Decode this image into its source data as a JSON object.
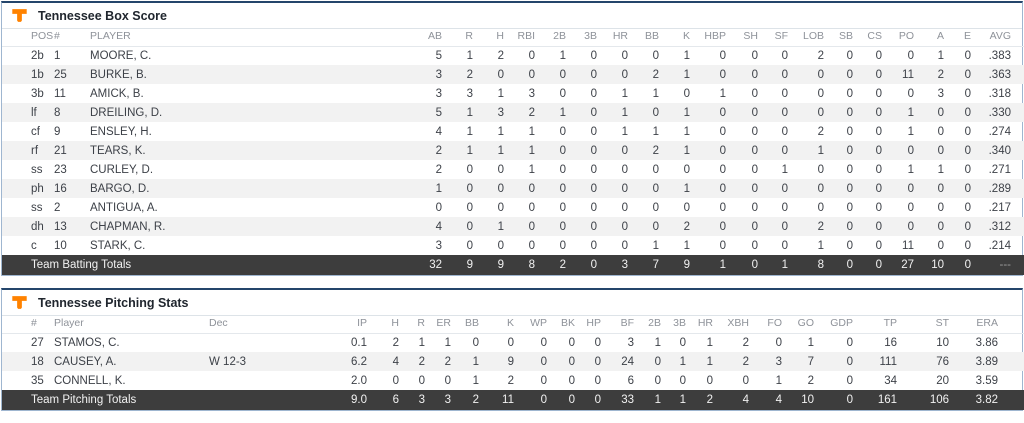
{
  "theme": {
    "accent_orange": "#FF8200",
    "border_blue": "#9fb6d0",
    "border_top_navy": "#24456b",
    "totals_row_bg": "#3d3d3d",
    "alt_row_bg": "#f2f2f2"
  },
  "batting": {
    "title": "Tennessee Box Score",
    "logo": "tennessee-power-t",
    "columns": [
      "POS",
      "#",
      "PLAYER",
      "AB",
      "R",
      "H",
      "RBI",
      "2B",
      "3B",
      "HR",
      "BB",
      "K",
      "HBP",
      "SH",
      "SF",
      "LOB",
      "SB",
      "CS",
      "PO",
      "A",
      "E",
      "AVG"
    ],
    "text_col_count": 3,
    "rows": [
      [
        "2b",
        "1",
        "MOORE, C.",
        "5",
        "1",
        "2",
        "0",
        "1",
        "0",
        "0",
        "0",
        "1",
        "0",
        "0",
        "0",
        "2",
        "0",
        "0",
        "0",
        "1",
        "0",
        ".383"
      ],
      [
        "1b",
        "25",
        "BURKE, B.",
        "3",
        "2",
        "0",
        "0",
        "0",
        "0",
        "0",
        "2",
        "1",
        "0",
        "0",
        "0",
        "0",
        "0",
        "0",
        "11",
        "2",
        "0",
        ".363"
      ],
      [
        "3b",
        "11",
        "AMICK, B.",
        "3",
        "3",
        "1",
        "3",
        "0",
        "0",
        "1",
        "1",
        "0",
        "1",
        "0",
        "0",
        "0",
        "0",
        "0",
        "0",
        "3",
        "0",
        ".318"
      ],
      [
        "lf",
        "8",
        "DREILING, D.",
        "5",
        "1",
        "3",
        "2",
        "1",
        "0",
        "1",
        "0",
        "1",
        "0",
        "0",
        "0",
        "0",
        "0",
        "0",
        "1",
        "0",
        "0",
        ".330"
      ],
      [
        "cf",
        "9",
        "ENSLEY, H.",
        "4",
        "1",
        "1",
        "1",
        "0",
        "0",
        "1",
        "1",
        "1",
        "0",
        "0",
        "0",
        "2",
        "0",
        "0",
        "1",
        "0",
        "0",
        ".274"
      ],
      [
        "rf",
        "21",
        "TEARS, K.",
        "2",
        "1",
        "1",
        "1",
        "0",
        "0",
        "0",
        "2",
        "1",
        "0",
        "0",
        "0",
        "1",
        "0",
        "0",
        "0",
        "0",
        "0",
        ".340"
      ],
      [
        "ss",
        "23",
        "CURLEY, D.",
        "2",
        "0",
        "0",
        "1",
        "0",
        "0",
        "0",
        "0",
        "0",
        "0",
        "0",
        "1",
        "0",
        "0",
        "0",
        "1",
        "1",
        "0",
        ".271"
      ],
      [
        "ph",
        "16",
        "BARGO, D.",
        "1",
        "0",
        "0",
        "0",
        "0",
        "0",
        "0",
        "0",
        "1",
        "0",
        "0",
        "0",
        "0",
        "0",
        "0",
        "0",
        "0",
        "0",
        ".289"
      ],
      [
        "ss",
        "2",
        "ANTIGUA, A.",
        "0",
        "0",
        "0",
        "0",
        "0",
        "0",
        "0",
        "0",
        "0",
        "0",
        "0",
        "0",
        "0",
        "0",
        "0",
        "0",
        "0",
        "0",
        ".217"
      ],
      [
        "dh",
        "13",
        "CHAPMAN, R.",
        "4",
        "0",
        "1",
        "0",
        "0",
        "0",
        "0",
        "0",
        "2",
        "0",
        "0",
        "0",
        "2",
        "0",
        "0",
        "0",
        "0",
        "0",
        ".312"
      ],
      [
        "c",
        "10",
        "STARK, C.",
        "3",
        "0",
        "0",
        "0",
        "0",
        "0",
        "0",
        "1",
        "1",
        "0",
        "0",
        "0",
        "1",
        "0",
        "0",
        "11",
        "0",
        "0",
        ".214"
      ]
    ],
    "totals_label": "Team Batting Totals",
    "totals": [
      "32",
      "9",
      "9",
      "8",
      "2",
      "0",
      "3",
      "7",
      "9",
      "1",
      "0",
      "1",
      "8",
      "0",
      "0",
      "27",
      "10",
      "0",
      "---"
    ]
  },
  "pitching": {
    "title": "Tennessee Pitching Stats",
    "logo": "tennessee-power-t",
    "columns": [
      "#",
      "Player",
      "Dec",
      "IP",
      "H",
      "R",
      "ER",
      "BB",
      "K",
      "WP",
      "BK",
      "HP",
      "BF",
      "2B",
      "3B",
      "HR",
      "XBH",
      "FO",
      "GO",
      "GDP",
      "TP",
      "ST",
      "ERA"
    ],
    "text_col_count": 3,
    "rows": [
      [
        "27",
        "STAMOS, C.",
        "",
        "0.1",
        "2",
        "1",
        "1",
        "0",
        "0",
        "0",
        "0",
        "0",
        "3",
        "1",
        "0",
        "1",
        "2",
        "0",
        "1",
        "0",
        "16",
        "10",
        "3.86"
      ],
      [
        "18",
        "CAUSEY, A.",
        "W 12-3",
        "6.2",
        "4",
        "2",
        "2",
        "1",
        "9",
        "0",
        "0",
        "0",
        "24",
        "0",
        "1",
        "1",
        "2",
        "3",
        "7",
        "0",
        "111",
        "76",
        "3.89"
      ],
      [
        "35",
        "CONNELL, K.",
        "",
        "2.0",
        "0",
        "0",
        "0",
        "1",
        "2",
        "0",
        "0",
        "0",
        "6",
        "0",
        "0",
        "0",
        "0",
        "1",
        "2",
        "0",
        "34",
        "20",
        "3.59"
      ]
    ],
    "totals_label": "Team Pitching Totals",
    "totals": [
      "9.0",
      "6",
      "3",
      "3",
      "2",
      "11",
      "0",
      "0",
      "0",
      "33",
      "1",
      "1",
      "2",
      "4",
      "4",
      "10",
      "0",
      "161",
      "106",
      "3.82"
    ]
  },
  "column_widths": {
    "batting": [
      52,
      36,
      320,
      40,
      31,
      31,
      31,
      31,
      31,
      31,
      31,
      31,
      36,
      32,
      30,
      36,
      29,
      29,
      32,
      30,
      27,
      45
    ],
    "pitching": [
      52,
      155,
      118,
      48,
      32,
      26,
      26,
      28,
      35,
      33,
      28,
      26,
      33,
      27,
      25,
      27,
      36,
      33,
      32,
      39,
      44,
      52,
      67
    ]
  }
}
